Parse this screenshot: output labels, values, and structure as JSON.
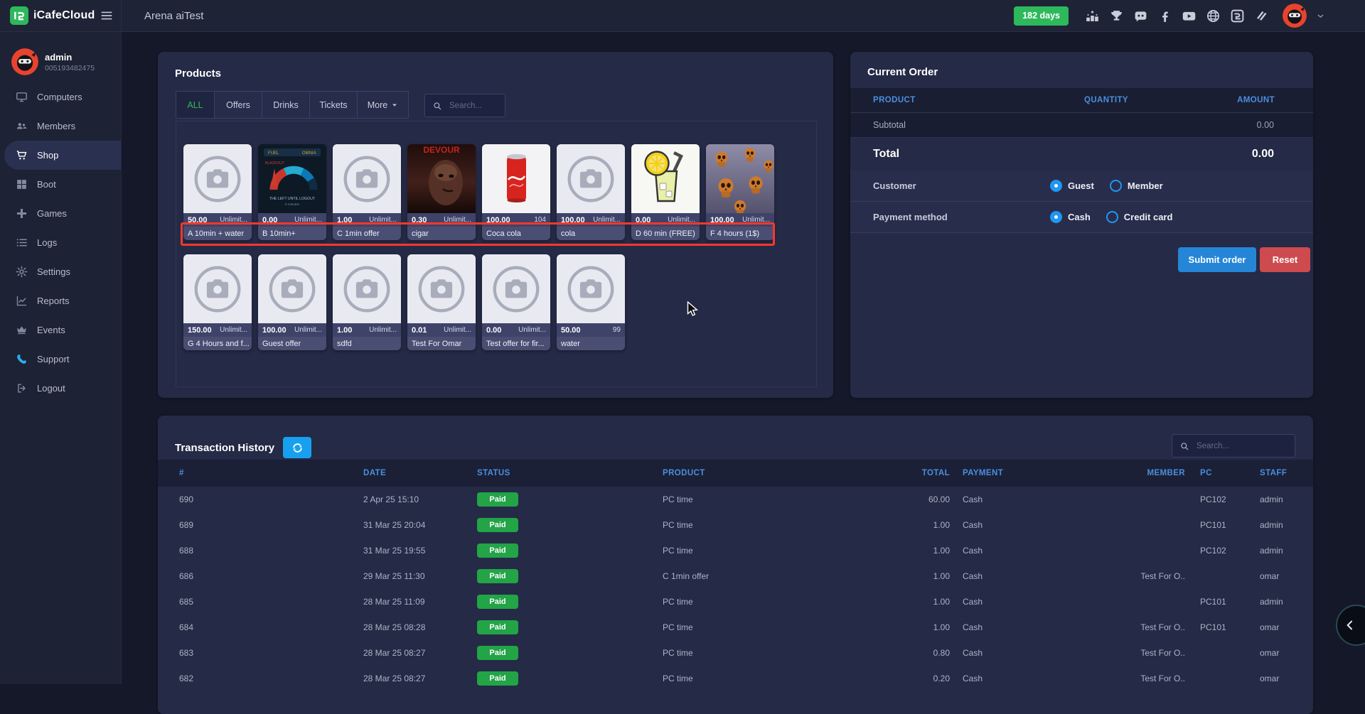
{
  "topbar": {
    "brand": "iCafeCloud",
    "menu_icon": "menu-icon",
    "page_title": "Arena aiTest",
    "days_badge": "182 days",
    "icons": [
      "ranking-icon",
      "trophy-icon",
      "discord-icon",
      "facebook-icon",
      "youtube-icon",
      "globe-icon",
      "icafecloud-icon",
      "layers-icon"
    ],
    "avatar": "ninja-avatar",
    "caret": "chevron-down-icon"
  },
  "sidebar": {
    "user": {
      "name": "admin",
      "id": "005193482475",
      "avatar": "ninja-avatar"
    },
    "items": [
      {
        "label": "Computers",
        "icon": "monitor-icon"
      },
      {
        "label": "Members",
        "icon": "members-icon"
      },
      {
        "label": "Shop",
        "icon": "cart-icon",
        "active": true
      },
      {
        "label": "Boot",
        "icon": "windows-icon"
      },
      {
        "label": "Games",
        "icon": "gamepad-icon"
      },
      {
        "label": "Logs",
        "icon": "list-icon"
      },
      {
        "label": "Settings",
        "icon": "gear-icon"
      },
      {
        "label": "Reports",
        "icon": "chart-icon"
      },
      {
        "label": "Events",
        "icon": "crown-icon"
      },
      {
        "label": "Support",
        "icon": "phone-icon",
        "accent": "#29aef5"
      },
      {
        "label": "Logout",
        "icon": "logout-icon"
      }
    ]
  },
  "products": {
    "title": "Products",
    "tabs": [
      {
        "label": "ALL",
        "active": true
      },
      {
        "label": "Offers"
      },
      {
        "label": "Drinks"
      },
      {
        "label": "Tickets"
      },
      {
        "label": "More",
        "caret": true
      }
    ],
    "search_placeholder": "Search...",
    "highlight_color": "#f5392c",
    "cards": [
      {
        "price": "50.00",
        "stock": "Unlimit...",
        "name": "A 10min + water",
        "image": "placeholder"
      },
      {
        "price": "0.00",
        "stock": "Unlimit...",
        "name": "B 10min+",
        "image": "gauge"
      },
      {
        "price": "1.00",
        "stock": "Unlimit...",
        "name": "C 1min offer",
        "image": "placeholder"
      },
      {
        "price": "0.30",
        "stock": "Unlimit...",
        "name": "cigar",
        "image": "horror"
      },
      {
        "price": "100.00",
        "stock": "104",
        "name": "Coca cola",
        "image": "cola-can"
      },
      {
        "price": "100.00",
        "stock": "Unlimit...",
        "name": "cola",
        "image": "placeholder"
      },
      {
        "price": "0.00",
        "stock": "Unlimit...",
        "name": "D 60 min (FREE)",
        "image": "lemonade"
      },
      {
        "price": "100.00",
        "stock": "Unlimit...",
        "name": "F 4 hours (1$)",
        "image": "skulls"
      },
      {
        "price": "150.00",
        "stock": "Unlimit...",
        "name": "G 4 Hours and f...",
        "image": "placeholder"
      },
      {
        "price": "100.00",
        "stock": "Unlimit...",
        "name": "Guest offer",
        "image": "placeholder"
      },
      {
        "price": "1.00",
        "stock": "Unlimit...",
        "name": "sdfd",
        "image": "placeholder"
      },
      {
        "price": "0.01",
        "stock": "Unlimit...",
        "name": "Test For Omar",
        "image": "placeholder"
      },
      {
        "price": "0.00",
        "stock": "Unlimit...",
        "name": "Test offer for fir...",
        "image": "placeholder"
      },
      {
        "price": "50.00",
        "stock": "99",
        "name": "water",
        "image": "placeholder"
      }
    ]
  },
  "order": {
    "title": "Current Order",
    "columns": [
      "PRODUCT",
      "QUANTITY",
      "AMOUNT"
    ],
    "subtotal_label": "Subtotal",
    "subtotal_value": "0.00",
    "total_label": "Total",
    "total_value": "0.00",
    "customer_label": "Customer",
    "customer_options": [
      {
        "label": "Guest",
        "selected": true
      },
      {
        "label": "Member",
        "selected": false
      }
    ],
    "payment_label": "Payment method",
    "payment_options": [
      {
        "label": "Cash",
        "selected": true
      },
      {
        "label": "Credit card",
        "selected": false
      }
    ],
    "submit_label": "Submit order",
    "reset_label": "Reset"
  },
  "history": {
    "title": "Transaction History",
    "refresh_icon": "refresh-icon",
    "search_placeholder": "Search...",
    "columns": [
      "#",
      "DATE",
      "STATUS",
      "PRODUCT",
      "TOTAL",
      "PAYMENT",
      "MEMBER",
      "PC",
      "STAFF"
    ],
    "rows": [
      {
        "id": "690",
        "date": "2 Apr 25 15:10",
        "status": "Paid",
        "product": "PC time",
        "total": "60.00",
        "payment": "Cash",
        "member": "",
        "pc": "PC102",
        "staff": "admin"
      },
      {
        "id": "689",
        "date": "31 Mar 25 20:04",
        "status": "Paid",
        "product": "PC time",
        "total": "1.00",
        "payment": "Cash",
        "member": "",
        "pc": "PC101",
        "staff": "admin"
      },
      {
        "id": "688",
        "date": "31 Mar 25 19:55",
        "status": "Paid",
        "product": "PC time",
        "total": "1.00",
        "payment": "Cash",
        "member": "",
        "pc": "PC102",
        "staff": "admin"
      },
      {
        "id": "686",
        "date": "29 Mar 25 11:30",
        "status": "Paid",
        "product": "C 1min offer",
        "total": "1.00",
        "payment": "Cash",
        "member": "Test For O..",
        "pc": "",
        "staff": "omar"
      },
      {
        "id": "685",
        "date": "28 Mar 25 11:09",
        "status": "Paid",
        "product": "PC time",
        "total": "1.00",
        "payment": "Cash",
        "member": "",
        "pc": "PC101",
        "staff": "admin"
      },
      {
        "id": "684",
        "date": "28 Mar 25 08:28",
        "status": "Paid",
        "product": "PC time",
        "total": "1.00",
        "payment": "Cash",
        "member": "Test For O..",
        "pc": "PC101",
        "staff": "omar"
      },
      {
        "id": "683",
        "date": "28 Mar 25 08:27",
        "status": "Paid",
        "product": "PC time",
        "total": "0.80",
        "payment": "Cash",
        "member": "Test For O..",
        "pc": "",
        "staff": "omar"
      },
      {
        "id": "682",
        "date": "28 Mar 25 08:27",
        "status": "Paid",
        "product": "PC time",
        "total": "0.20",
        "payment": "Cash",
        "member": "Test For O..",
        "pc": "",
        "staff": "omar"
      }
    ]
  },
  "colors": {
    "badge_green": "#2eb85c",
    "paid_green": "#22a447",
    "accent_blue": "#2196f3",
    "header_blue": "#4a8fdd",
    "submit_blue": "#2586d8",
    "reset_red": "#cd4b4f",
    "highlight_red": "#f5392c"
  }
}
